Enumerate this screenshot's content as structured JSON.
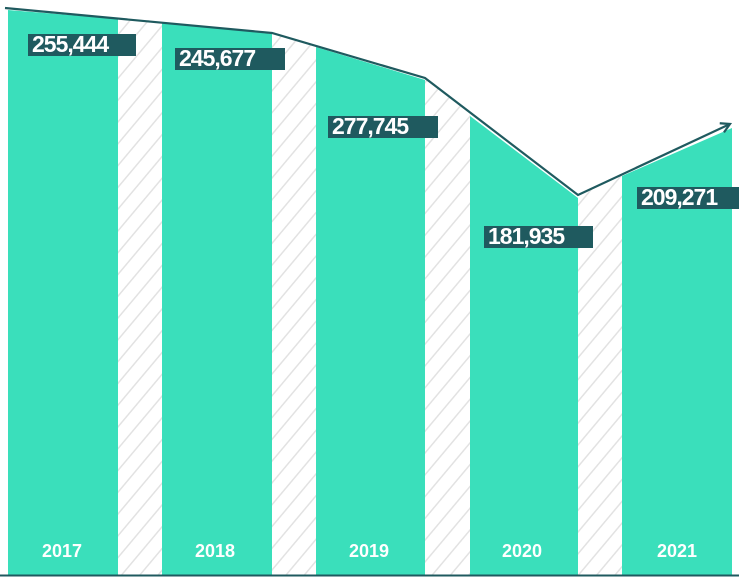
{
  "bars": [
    {
      "year": "2017",
      "label": "255,444"
    },
    {
      "year": "2018",
      "label": "245,677"
    },
    {
      "year": "2019",
      "label": "277,745"
    },
    {
      "year": "2020",
      "label": "181,935"
    },
    {
      "year": "2021",
      "label": "209,271"
    }
  ]
}
